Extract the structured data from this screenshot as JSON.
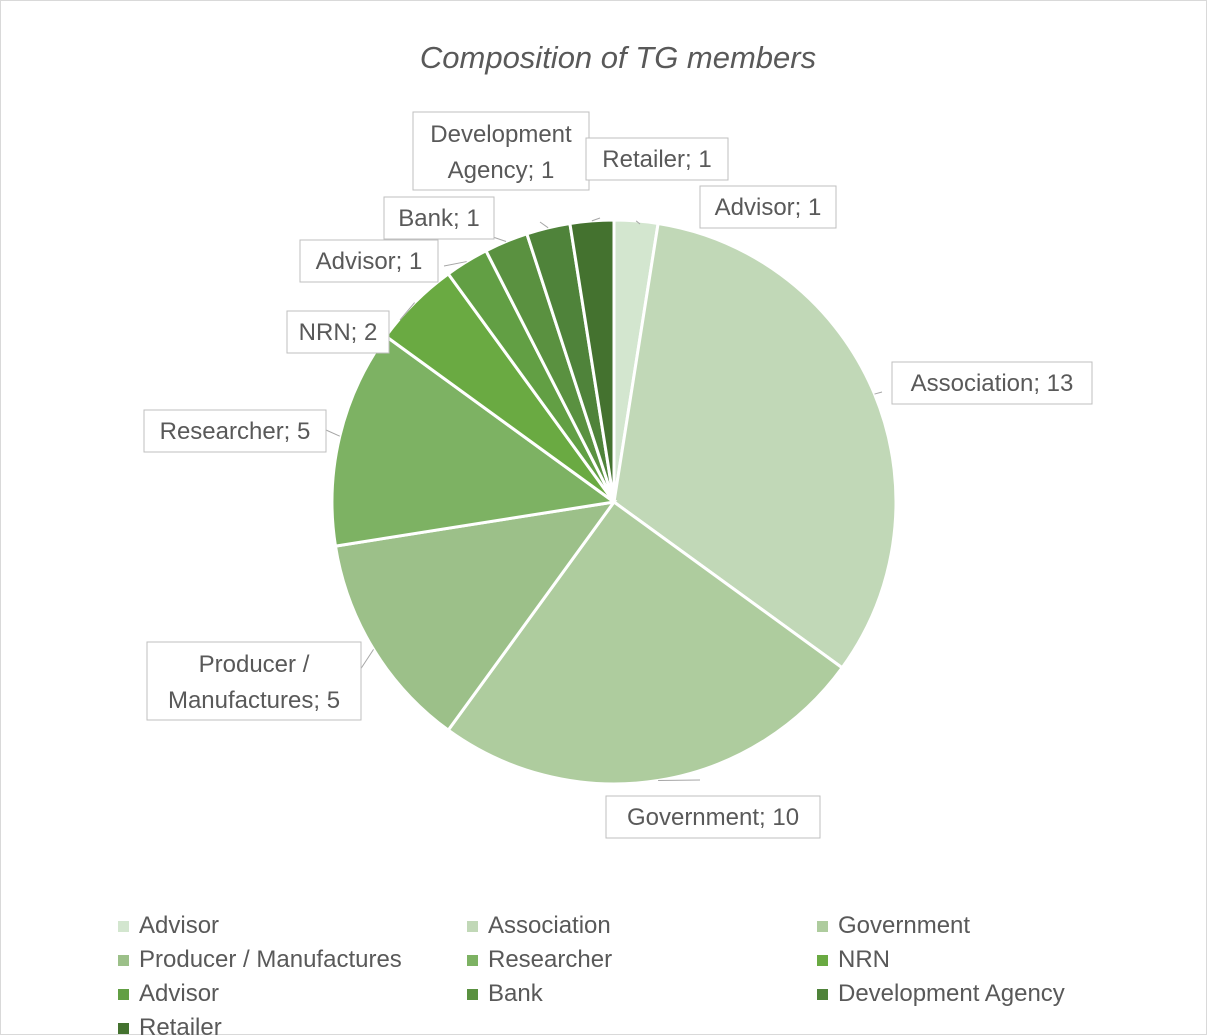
{
  "chart_data": {
    "type": "pie",
    "title": "Composition of TG members",
    "slices": [
      {
        "label": "Advisor",
        "value": 1,
        "data_label": "Advisor; 1",
        "color": "#d3e6cf"
      },
      {
        "label": "Association",
        "value": 13,
        "data_label": "Association; 13",
        "color": "#c1d8b7"
      },
      {
        "label": "Government",
        "value": 10,
        "data_label": "Government; 10",
        "color": "#aecc9e"
      },
      {
        "label": "Producer / Manufactures",
        "value": 5,
        "data_label": "Producer / Manufactures; 5",
        "color": "#9cc089"
      },
      {
        "label": "Researcher",
        "value": 5,
        "data_label": "Researcher; 5",
        "color": "#7db263"
      },
      {
        "label": "NRN",
        "value": 2,
        "data_label": "NRN; 2",
        "color": "#6aaa42"
      },
      {
        "label": "Advisor",
        "value": 1,
        "data_label": "Advisor; 1",
        "color": "#629f44"
      },
      {
        "label": "Bank",
        "value": 1,
        "data_label": "Bank; 1",
        "color": "#5a9140"
      },
      {
        "label": "Development Agency",
        "value": 1,
        "data_label": "Development Agency; 1",
        "color": "#4f833a"
      },
      {
        "label": "Retailer",
        "value": 1,
        "data_label": "Retailer; 1",
        "color": "#44722f"
      }
    ],
    "legend_position": "bottom"
  }
}
